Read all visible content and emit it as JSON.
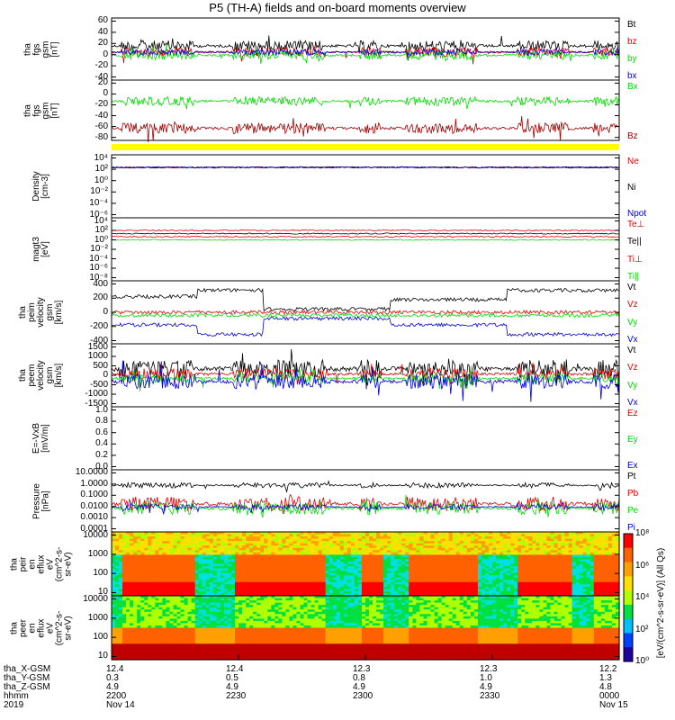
{
  "title": "P5 (TH-A) fields and on-board moments overview",
  "colors": {
    "black": "#000000",
    "red": "#e00000",
    "green": "#00dd00",
    "blue": "#0000dd",
    "dred": "#a00000",
    "yellow": "#ffff00"
  },
  "chart_data": [
    {
      "id": "p1",
      "type": "line",
      "ylabel": [
        "tha",
        "fgs",
        "gsm",
        "[nT]"
      ],
      "yticks": [
        "60",
        "40",
        "20",
        "0",
        "-20",
        "-40"
      ],
      "series": [
        {
          "name": "Bt",
          "color": "#000000"
        },
        {
          "name": "bz",
          "color": "#e00000"
        },
        {
          "name": "by",
          "color": "#00dd00"
        },
        {
          "name": "bx",
          "color": "#0000dd"
        }
      ]
    },
    {
      "id": "p2",
      "type": "line",
      "ylabel": [
        "tha",
        "fgs",
        "gsm",
        "[nT]"
      ],
      "yticks": [
        "20",
        "0",
        "-20",
        "-40",
        "-60",
        "-80"
      ],
      "series": [
        {
          "name": "Bx",
          "color": "#00dd00"
        },
        {
          "name": "Bz",
          "color": "#a00000"
        }
      ]
    },
    {
      "id": "p3",
      "type": "line",
      "ylabel": [
        "Density",
        "[cm-3]"
      ],
      "yticks": [
        "10⁴",
        "10²",
        "10⁰",
        "10⁻²",
        "10⁻⁴",
        "10⁻⁶"
      ],
      "series": [
        {
          "name": "Ne",
          "color": "#e00000"
        },
        {
          "name": "Ni",
          "color": "#000000"
        },
        {
          "name": "Npot",
          "color": "#0000dd"
        }
      ]
    },
    {
      "id": "p4",
      "type": "line",
      "ylabel": [
        "magt3",
        "[eV]"
      ],
      "yticks": [
        "10⁴",
        "10²",
        "10⁰",
        "10⁻²",
        "10⁻⁴",
        "10⁻⁶",
        "10⁻⁸"
      ],
      "series": [
        {
          "name": "Te⊥",
          "color": "#e00000"
        },
        {
          "name": "Te||",
          "color": "#000000"
        },
        {
          "name": "Ti⊥",
          "color": "#e00000"
        },
        {
          "name": "Ti||",
          "color": "#00dd00"
        }
      ]
    },
    {
      "id": "p5",
      "type": "line",
      "ylabel": [
        "tha",
        "peim",
        "velocity",
        "gsm",
        "[km/s]"
      ],
      "yticks": [
        "400",
        "200",
        "0",
        "-200",
        "-400"
      ],
      "series": [
        {
          "name": "Vt",
          "color": "#000000"
        },
        {
          "name": "Vz",
          "color": "#e00000"
        },
        {
          "name": "Vy",
          "color": "#00dd00"
        },
        {
          "name": "Vx",
          "color": "#0000dd"
        }
      ]
    },
    {
      "id": "p6",
      "type": "line",
      "ylabel": [
        "tha",
        "peem",
        "velocity",
        "gsm",
        "[km/s]"
      ],
      "yticks": [
        "1500",
        "1000",
        "500",
        "0",
        "-500",
        "-1000",
        "-1500"
      ],
      "series": [
        {
          "name": "Vt",
          "color": "#000000"
        },
        {
          "name": "Vz",
          "color": "#e00000"
        },
        {
          "name": "Vy",
          "color": "#00dd00"
        },
        {
          "name": "Vx",
          "color": "#0000dd"
        }
      ]
    },
    {
      "id": "p7",
      "type": "line",
      "ylabel": [
        "E=-VxB",
        "[mV/m]"
      ],
      "yticks": [
        "1.0",
        "0.8",
        "0.6",
        "0.4",
        "0.2",
        "0.0"
      ],
      "series": [
        {
          "name": "Ez",
          "color": "#e00000"
        },
        {
          "name": "Ey",
          "color": "#00dd00"
        },
        {
          "name": "Ex",
          "color": "#0000dd"
        }
      ]
    },
    {
      "id": "p8",
      "type": "line",
      "ylabel": [
        "Pressure",
        "[nPa]"
      ],
      "yticks": [
        "10.0000",
        "1.0000",
        "0.1000",
        "0.0100",
        "0.0010",
        "0.0001"
      ],
      "series": [
        {
          "name": "Pt",
          "color": "#000000"
        },
        {
          "name": "Pb",
          "color": "#e00000"
        },
        {
          "name": "Pe",
          "color": "#00dd00"
        },
        {
          "name": "Pi",
          "color": "#0000dd"
        }
      ]
    },
    {
      "id": "p9",
      "type": "heatmap",
      "ylabel": [
        "tha",
        "peir",
        "en",
        "eflux",
        "eV",
        "(cm^2-s-",
        "sr-eV)"
      ],
      "yticks": [
        "10000",
        "1000",
        "100",
        "10"
      ]
    },
    {
      "id": "p10",
      "type": "heatmap",
      "ylabel": [
        "tha",
        "peer",
        "en",
        "eflux",
        "eV",
        "(cm^2-s-",
        "sr-eV)"
      ],
      "yticks": [
        "10000",
        "1000",
        "100",
        "10"
      ]
    }
  ],
  "colorbar": {
    "label": "[eV/(cm^2-s-sr-eV)] (All Qs)",
    "ticks": [
      "10⁸",
      "10⁶",
      "10⁴",
      "10²",
      "10⁰"
    ]
  },
  "xaxis": {
    "rows": [
      {
        "label": "tha_X-GSM",
        "values": [
          "12.4",
          "12.4",
          "12.3",
          "12.3",
          "12.2"
        ]
      },
      {
        "label": "tha_Y-GSM",
        "values": [
          "0.3",
          "0.5",
          "0.8",
          "1.0",
          "1.3"
        ]
      },
      {
        "label": "tha_Z-GSM",
        "values": [
          "4.9",
          "4.9",
          "4.9",
          "4.9",
          "4.8"
        ]
      },
      {
        "label": "hhmm",
        "values": [
          "2200",
          "2230",
          "2300",
          "2330",
          "0000"
        ]
      },
      {
        "label": "2019",
        "values": [
          "Nov 14",
          "",
          "",
          "",
          "Nov 15"
        ]
      }
    ]
  }
}
